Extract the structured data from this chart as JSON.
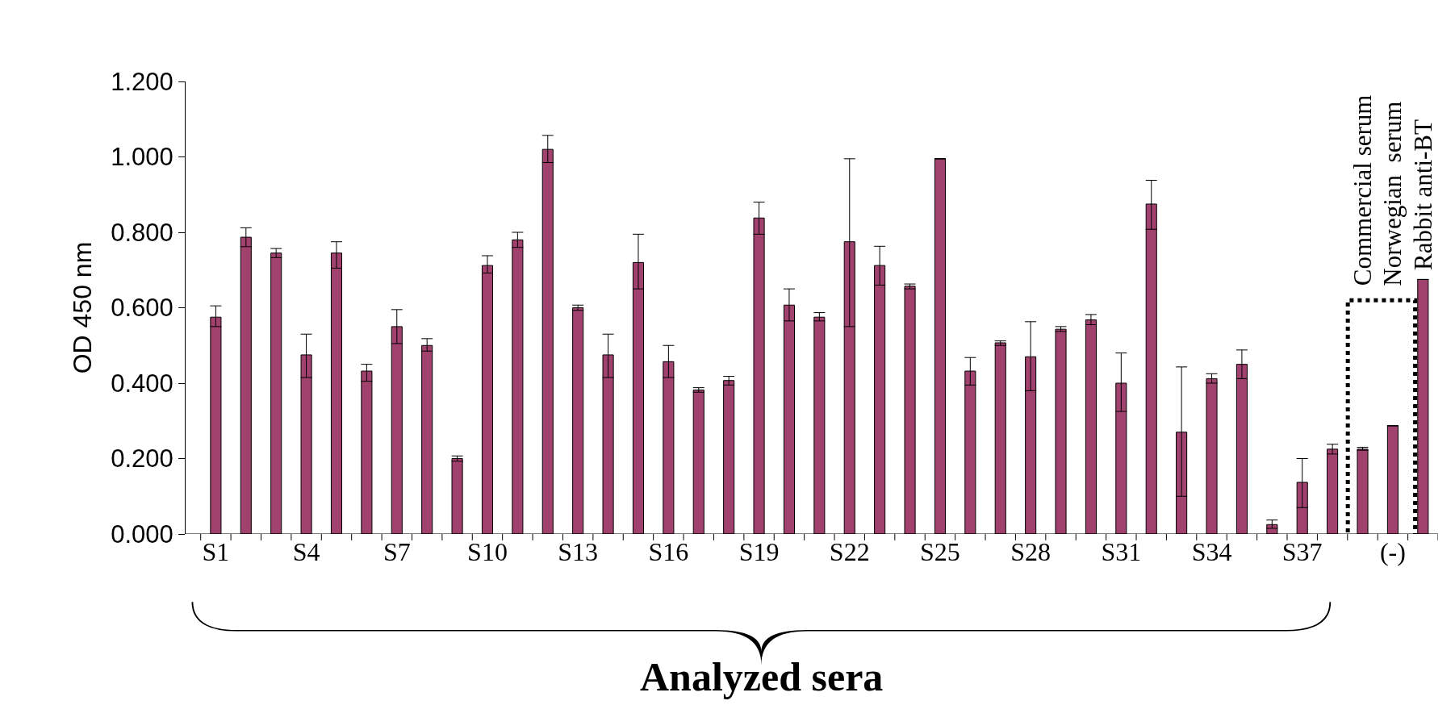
{
  "chart_data": {
    "type": "bar",
    "xlabel": "Analyzed sera",
    "ylabel": "OD 450 nm",
    "categories": [
      "S1",
      null,
      null,
      "S4",
      null,
      null,
      "S7",
      null,
      null,
      "S10",
      null,
      null,
      "S13",
      null,
      null,
      "S16",
      null,
      null,
      "S19",
      null,
      null,
      "S22",
      null,
      null,
      "S25",
      null,
      null,
      "S28",
      null,
      null,
      "S31",
      null,
      null,
      "S34",
      null,
      null,
      "S37",
      null,
      null,
      "(-)",
      null
    ],
    "values": [
      0.575,
      0.787,
      0.745,
      0.475,
      0.745,
      0.432,
      0.55,
      0.5,
      0.2,
      0.712,
      0.78,
      1.02,
      0.6,
      0.475,
      0.72,
      0.457,
      0.382,
      0.407,
      0.838,
      0.607,
      0.575,
      0.775,
      0.712,
      0.657,
      0.995,
      0.432,
      0.507,
      0.47,
      0.543,
      0.568,
      0.4,
      0.875,
      0.27,
      0.412,
      0.45,
      0.025,
      0.137,
      0.225,
      0.225,
      0.287,
      0.675
    ],
    "errors": [
      [
        0.55,
        0.605
      ],
      [
        0.762,
        0.812
      ],
      [
        0.733,
        0.757
      ],
      [
        0.415,
        0.53
      ],
      [
        0.705,
        0.775
      ],
      [
        0.405,
        0.45
      ],
      [
        0.505,
        0.595
      ],
      [
        0.485,
        0.518
      ],
      [
        0.193,
        0.207
      ],
      [
        0.692,
        0.738
      ],
      [
        0.76,
        0.8
      ],
      [
        0.985,
        1.057
      ],
      [
        0.593,
        0.607
      ],
      [
        0.415,
        0.53
      ],
      [
        0.65,
        0.795
      ],
      [
        0.415,
        0.5
      ],
      [
        0.376,
        0.388
      ],
      [
        0.395,
        0.418
      ],
      [
        0.795,
        0.88
      ],
      [
        0.565,
        0.65
      ],
      [
        0.565,
        0.587
      ],
      [
        0.55,
        0.995
      ],
      [
        0.66,
        0.763
      ],
      [
        0.65,
        0.663
      ],
      null,
      [
        0.395,
        0.468
      ],
      [
        0.5,
        0.512
      ],
      [
        0.38,
        0.563
      ],
      [
        0.537,
        0.55
      ],
      [
        0.555,
        0.582
      ],
      [
        0.325,
        0.48
      ],
      [
        0.808,
        0.938
      ],
      [
        0.1,
        0.443
      ],
      [
        0.4,
        0.425
      ],
      [
        0.412,
        0.488
      ],
      [
        0.015,
        0.037
      ],
      [
        0.07,
        0.2
      ],
      [
        0.212,
        0.238
      ],
      [
        0.222,
        0.23
      ],
      null,
      null
    ],
    "color": "#a0416e",
    "ylim": [
      0,
      1.2
    ],
    "yticks": [
      {
        "value": 0,
        "label": "0.000"
      },
      {
        "value": 0.2,
        "label": "0.200"
      },
      {
        "value": 0.4,
        "label": "0.400"
      },
      {
        "value": 0.6,
        "label": "0.600"
      },
      {
        "value": 0.8,
        "label": "0.800"
      },
      {
        "value": 1.0,
        "label": "1.000"
      },
      {
        "value": 1.2,
        "label": "1.200"
      }
    ],
    "annotations": [
      "Commercial serum",
      "Norwegian  serum",
      "Rabbit anti-BT"
    ],
    "legend": false
  }
}
